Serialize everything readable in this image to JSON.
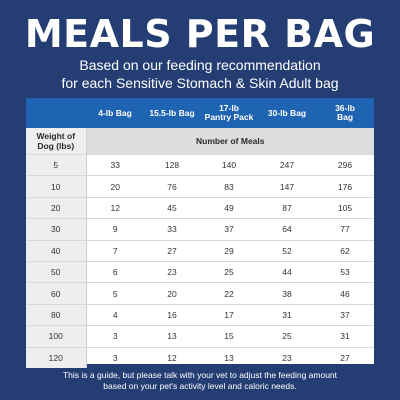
{
  "title": "MEALS PER BAG",
  "subtitle": {
    "line1": "Based on our feeding recommendation",
    "line2": "for each Sensitive Stomach & Skin Adult bag"
  },
  "table": {
    "bag_headers": [
      [
        "4-lb Bag"
      ],
      [
        "15.5-lb Bag"
      ],
      [
        "17-lb",
        "Pantry Pack"
      ],
      [
        "30-lb Bag"
      ],
      [
        "36-lb",
        "Bag"
      ]
    ],
    "weight_header": [
      "Weight of",
      "Dog (lbs)"
    ],
    "group_header": "Number of Meals",
    "rows": [
      [
        "5",
        "33",
        "128",
        "140",
        "247",
        "296"
      ],
      [
        "10",
        "20",
        "76",
        "83",
        "147",
        "176"
      ],
      [
        "20",
        "12",
        "45",
        "49",
        "87",
        "105"
      ],
      [
        "30",
        "9",
        "33",
        "37",
        "64",
        "77"
      ],
      [
        "40",
        "7",
        "27",
        "29",
        "52",
        "62"
      ],
      [
        "50",
        "6",
        "23",
        "25",
        "44",
        "53"
      ],
      [
        "60",
        "5",
        "20",
        "22",
        "38",
        "46"
      ],
      [
        "80",
        "4",
        "16",
        "17",
        "31",
        "37"
      ],
      [
        "100",
        "3",
        "13",
        "15",
        "25",
        "31"
      ],
      [
        "120",
        "3",
        "12",
        "13",
        "23",
        "27"
      ]
    ]
  },
  "footnote": {
    "line1": "This is a guide, but please talk with your vet to adjust the feeding amount",
    "line2": "based on your pet's activity level and caloric needs."
  },
  "colors": {
    "background": "#243e74",
    "header_blue": "#1f64b3",
    "subheader_gray": "#dddddd"
  }
}
